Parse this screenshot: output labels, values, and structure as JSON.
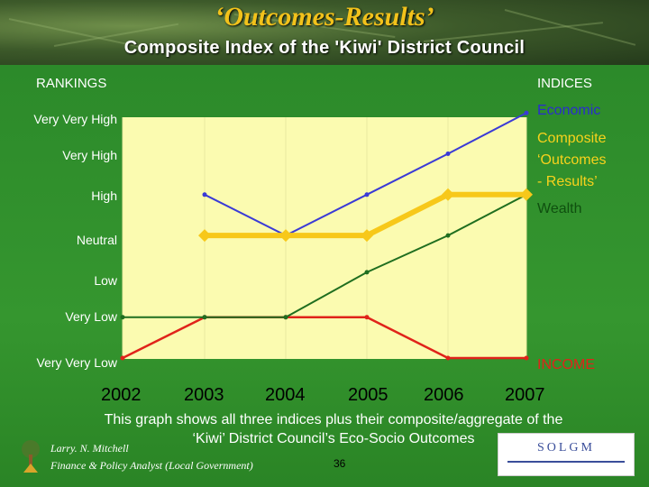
{
  "title": "‘Outcomes-Results’",
  "subtitle": "Composite Index of the 'Kiwi' District Council",
  "rankings_header": "RANKINGS",
  "indices_header": "INDICES",
  "rank_labels": [
    "Very Very High",
    "Very High",
    "High",
    "Neutral",
    "Low",
    "Very Low",
    "Very Very Low"
  ],
  "series_labels": {
    "economic": "Economic",
    "composite_line1": "Composite",
    "composite_line2": "‘Outcomes",
    "composite_line3": "- Results’",
    "wealth": "Wealth",
    "income": "INCOME"
  },
  "note_line1": "This graph shows all three indices plus their composite/aggregate of the",
  "note_line2": "‘Kiwi’ District Council’s Eco-Socio Outcomes",
  "author_name": "Larry. N. Mitchell",
  "author_title": "Finance & Policy Analyst (Local Government)",
  "page_number": "36",
  "logo_text": "SOLGM",
  "colors": {
    "economic": "#3a3ad6",
    "composite": "#f7c81a",
    "wealth": "#1f6e1f",
    "income": "#e0231a",
    "plot_bg": "#fbfbb0"
  },
  "chart_data": {
    "type": "line",
    "x": [
      "2002",
      "2003",
      "2004",
      "2005",
      "2006",
      "2007"
    ],
    "y_categories": [
      "Very Very Low",
      "Very Low",
      "Low",
      "Neutral",
      "High",
      "Very High",
      "Very Very High"
    ],
    "y_scale_note": "0 = Very Very Low ... 6 = Very Very High",
    "series": [
      {
        "name": "Economic",
        "values": [
          null,
          4,
          3,
          4,
          5,
          6
        ]
      },
      {
        "name": "Composite ‘Outcomes - Results’",
        "values": [
          null,
          3,
          3,
          3,
          4,
          4
        ]
      },
      {
        "name": "Wealth",
        "values": [
          1,
          1,
          1,
          2.1,
          3,
          4
        ]
      },
      {
        "name": "INCOME",
        "values": [
          0,
          1,
          1,
          1,
          0,
          0
        ]
      }
    ],
    "ylim": [
      0,
      6
    ],
    "grid": "vertical"
  }
}
